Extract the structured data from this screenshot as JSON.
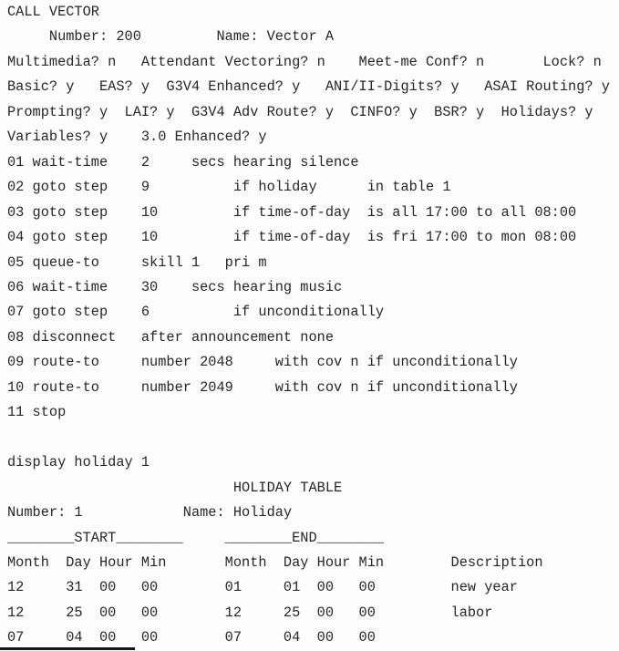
{
  "screen": {
    "background": "#fdfdfd",
    "text_color": "#262626",
    "lines": [
      "CALL VECTOR",
      "     Number: 200         Name: Vector A",
      "Multimedia? n   Attendant Vectoring? n    Meet-me Conf? n       Lock? n",
      "Basic? y   EAS? y  G3V4 Enhanced? y   ANI/II-Digits? y   ASAI Routing? y",
      "Prompting? y  LAI? y  G3V4 Adv Route? y  CINFO? y  BSR? y  Holidays? y",
      "Variables? y    3.0 Enhanced? y",
      "01 wait-time    2     secs hearing silence",
      "02 goto step    9          if holiday      in table 1",
      "03 goto step    10         if time-of-day  is all 17:00 to all 08:00",
      "04 goto step    10         if time-of-day  is fri 17:00 to mon 08:00",
      "05 queue-to     skill 1   pri m",
      "06 wait-time    30    secs hearing music",
      "07 goto step    6          if unconditionally",
      "08 disconnect   after announcement none",
      "09 route-to     number 2048     with cov n if unconditionally",
      "10 route-to     number 2049     with cov n if unconditionally",
      "11 stop",
      "",
      "display holiday 1",
      "                           HOLIDAY TABLE",
      "Number: 1            Name: Holiday",
      "________START________     ________END________",
      "Month  Day Hour Min       Month  Day Hour Min        Description",
      "12     31  00   00        01     01  00   00         new year",
      "12     25  00   00        12     25  00   00         labor",
      "07     04  00   00        07     04  00   00"
    ]
  },
  "vector": {
    "title": "CALL VECTOR",
    "number": "200",
    "name": "Vector A",
    "options": [
      {
        "label": "Multimedia?",
        "value": "n"
      },
      {
        "label": "Attendant Vectoring?",
        "value": "n"
      },
      {
        "label": "Meet-me Conf?",
        "value": "n"
      },
      {
        "label": "Lock?",
        "value": "n"
      },
      {
        "label": "Basic?",
        "value": "y"
      },
      {
        "label": "EAS?",
        "value": "y"
      },
      {
        "label": "G3V4 Enhanced?",
        "value": "y"
      },
      {
        "label": "ANI/II-Digits?",
        "value": "y"
      },
      {
        "label": "ASAI Routing?",
        "value": "y"
      },
      {
        "label": "Prompting?",
        "value": "y"
      },
      {
        "label": "LAI?",
        "value": "y"
      },
      {
        "label": "G3V4 Adv Route?",
        "value": "y"
      },
      {
        "label": "CINFO?",
        "value": "y"
      },
      {
        "label": "BSR?",
        "value": "y"
      },
      {
        "label": "Holidays?",
        "value": "y"
      },
      {
        "label": "Variables?",
        "value": "y"
      },
      {
        "label": "3.0 Enhanced?",
        "value": "y"
      }
    ],
    "steps": [
      {
        "step": "01",
        "command": "wait-time",
        "arguments": "2 secs hearing silence"
      },
      {
        "step": "02",
        "command": "goto step",
        "arguments": "9 if holiday in table 1"
      },
      {
        "step": "03",
        "command": "goto step",
        "arguments": "10 if time-of-day is all 17:00 to all 08:00"
      },
      {
        "step": "04",
        "command": "goto step",
        "arguments": "10 if time-of-day is fri 17:00 to mon 08:00"
      },
      {
        "step": "05",
        "command": "queue-to",
        "arguments": "skill 1 pri m"
      },
      {
        "step": "06",
        "command": "wait-time",
        "arguments": "30 secs hearing music"
      },
      {
        "step": "07",
        "command": "goto step",
        "arguments": "6 if unconditionally"
      },
      {
        "step": "08",
        "command": "disconnect",
        "arguments": "after announcement none"
      },
      {
        "step": "09",
        "command": "route-to",
        "arguments": "number 2048 with cov n if unconditionally"
      },
      {
        "step": "10",
        "command": "route-to",
        "arguments": "number 2049 with cov n if unconditionally"
      },
      {
        "step": "11",
        "command": "stop",
        "arguments": ""
      }
    ]
  },
  "holiday_command": "display holiday 1",
  "holiday_table": {
    "title": "HOLIDAY TABLE",
    "number": "1",
    "name": "Holiday",
    "group_headers": [
      "START",
      "END"
    ],
    "columns": [
      "Month",
      "Day",
      "Hour",
      "Min",
      "Month",
      "Day",
      "Hour",
      "Min",
      "Description"
    ],
    "rows": [
      {
        "start": {
          "month": "12",
          "day": "31",
          "hour": "00",
          "min": "00"
        },
        "end": {
          "month": "01",
          "day": "01",
          "hour": "00",
          "min": "00"
        },
        "description": "new year"
      },
      {
        "start": {
          "month": "12",
          "day": "25",
          "hour": "00",
          "min": "00"
        },
        "end": {
          "month": "12",
          "day": "25",
          "hour": "00",
          "min": "00"
        },
        "description": "labor"
      },
      {
        "start": {
          "month": "07",
          "day": "04",
          "hour": "00",
          "min": "00"
        },
        "end": {
          "month": "07",
          "day": "04",
          "hour": "00",
          "min": "00"
        },
        "description": ""
      }
    ]
  }
}
